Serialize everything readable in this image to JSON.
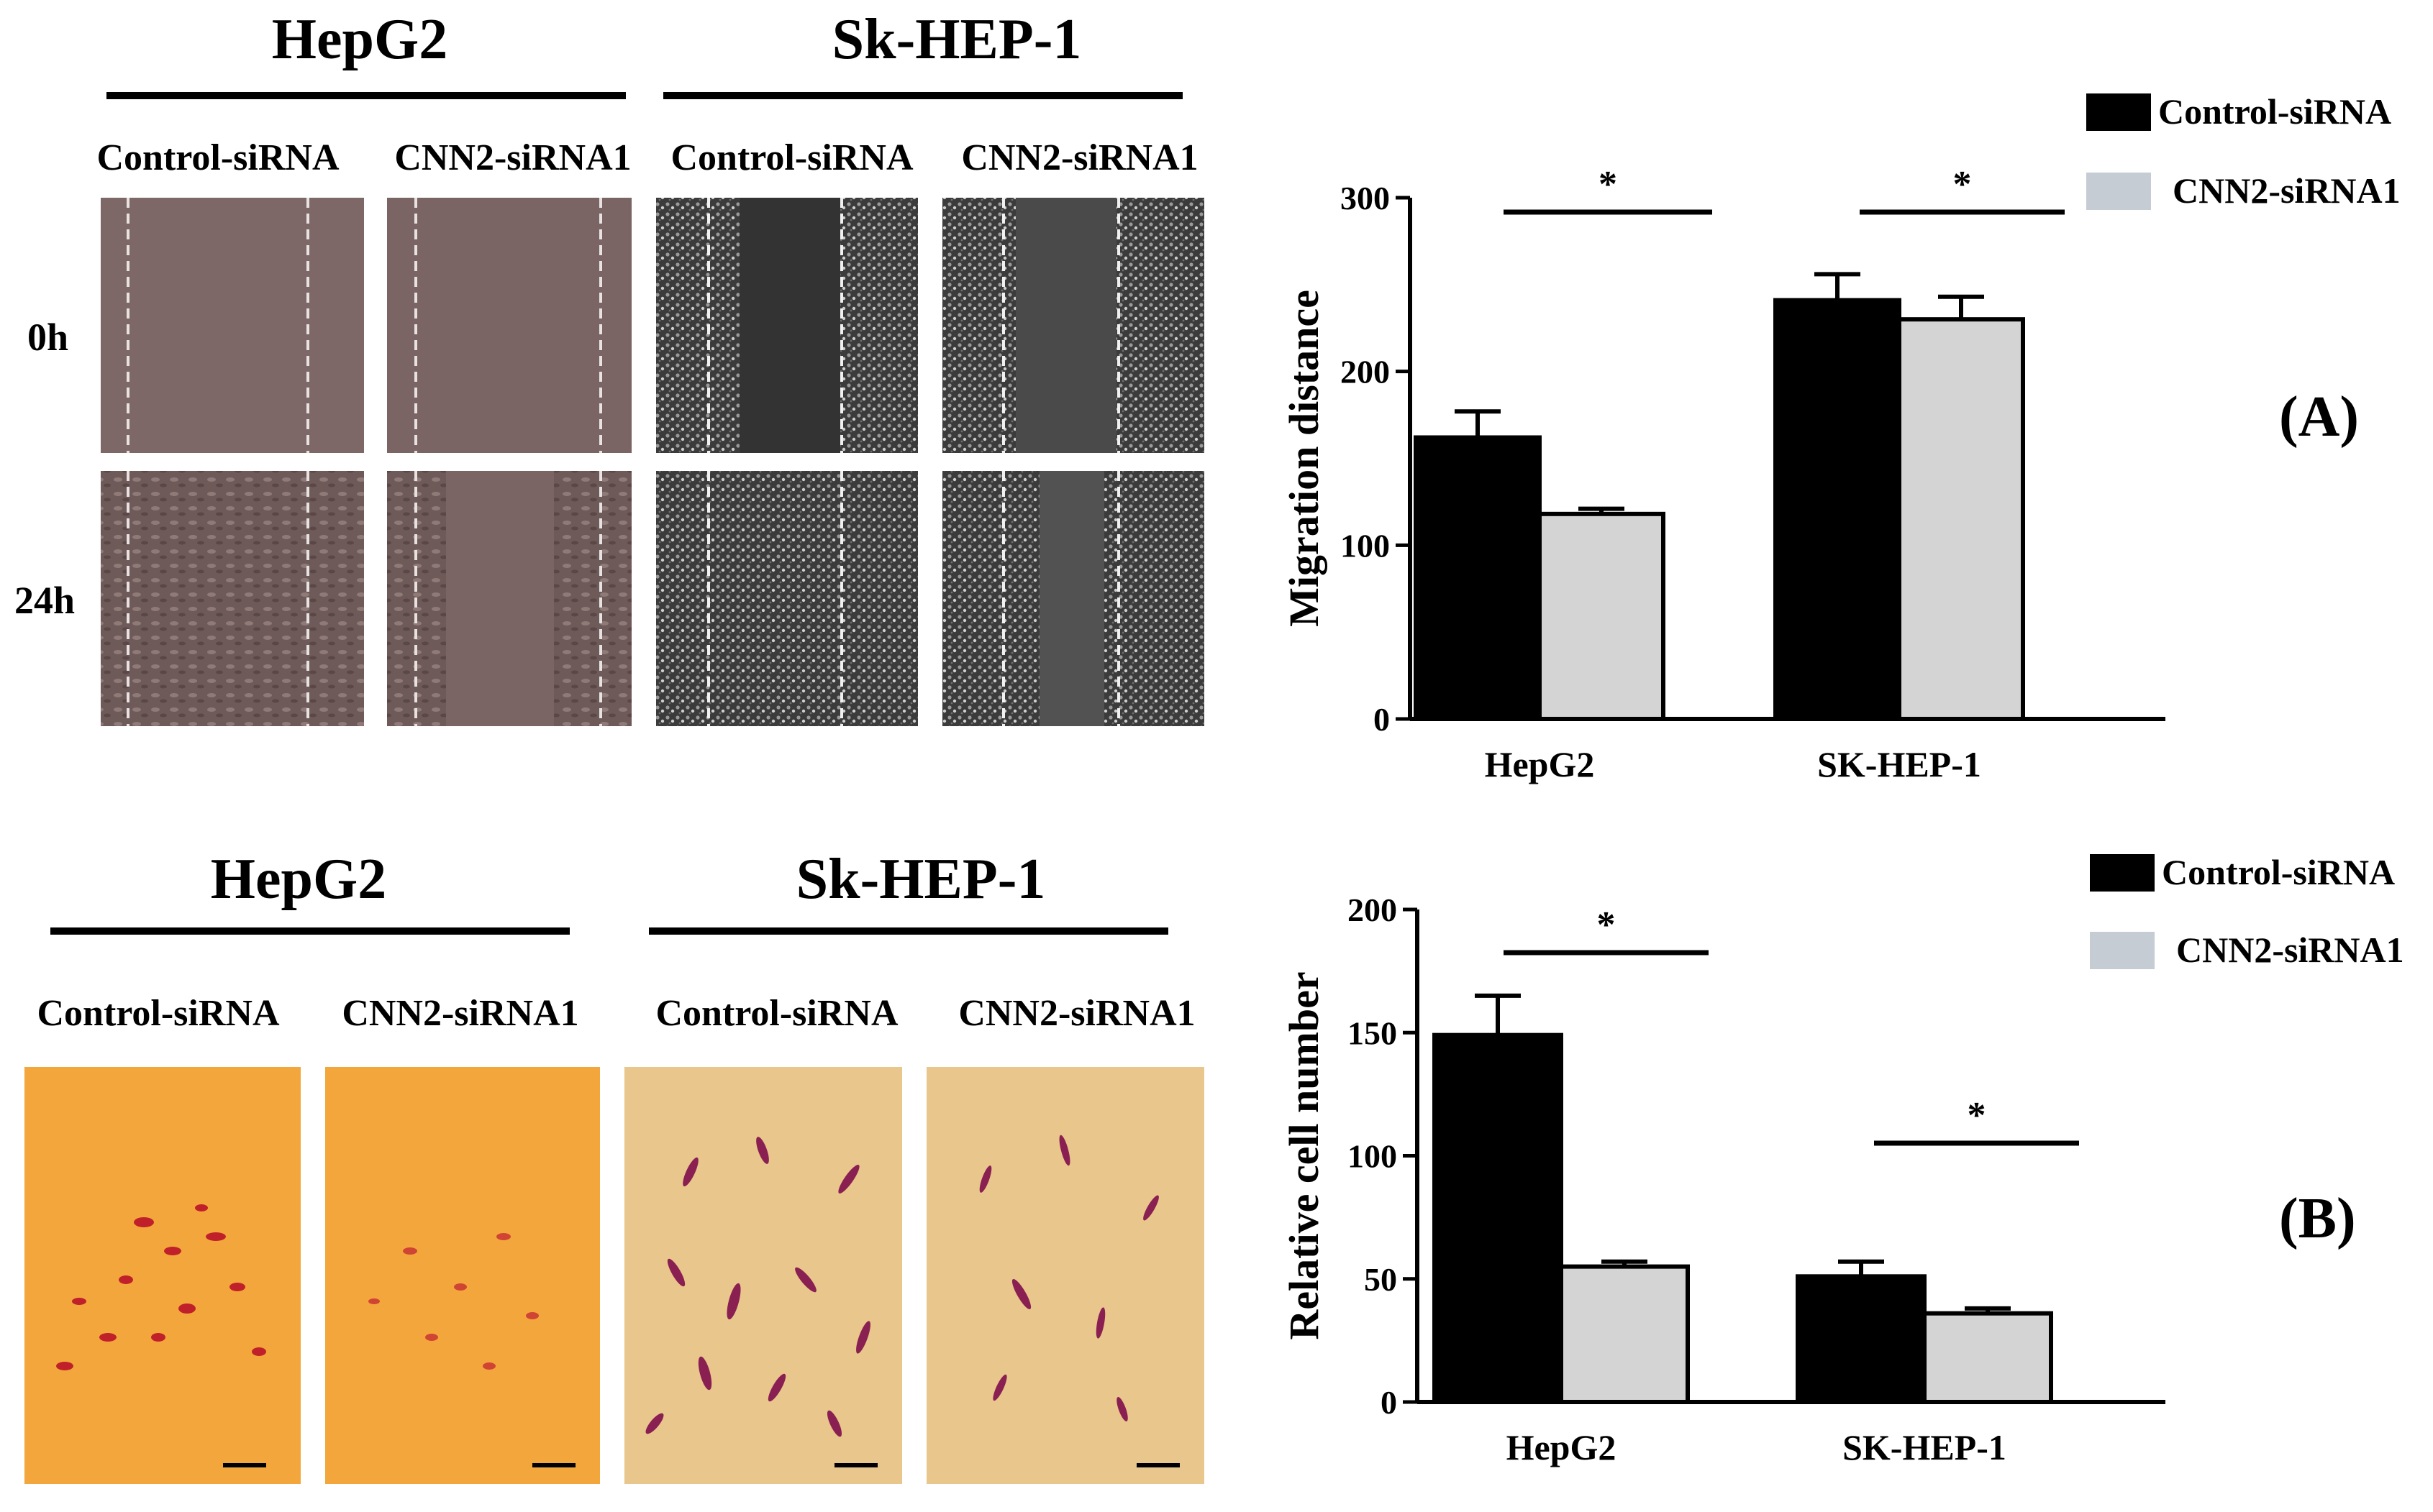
{
  "wound_healing": {
    "headers": [
      "HepG2",
      "Sk-HEP-1"
    ],
    "conditions": [
      "Control-siRNA",
      "CNN2-siRNA1",
      "Control-siRNA",
      "CNN2-siRNA1"
    ],
    "timepoints": [
      "0h",
      "24h"
    ]
  },
  "transwell": {
    "headers": [
      "HepG2",
      "Sk-HEP-1"
    ],
    "conditions": [
      "Control-siRNA",
      "CNN2-siRNA1",
      "Control-siRNA",
      "CNN2-siRNA1"
    ]
  },
  "panel_labels": [
    "(A)",
    "(B)"
  ],
  "colors": {
    "control": "#000000",
    "cnn2": "#d4d4d4",
    "legend_cnn2": "#c5ccd3",
    "wound_hepg2": "#7c6766",
    "wound_sk": "#3a3a3a",
    "transwell_hepg2": "#f0a436",
    "transwell_sk": "#e6c48c",
    "cells_hepg2": "#c0202a",
    "cells_sk": "#8a1f52"
  },
  "chart_data": [
    {
      "type": "bar",
      "categories": [
        "HepG2",
        "SK-HEP-1"
      ],
      "series": [
        {
          "name": "Control-siRNA",
          "values": [
            162,
            241
          ],
          "errors": [
            15,
            15
          ]
        },
        {
          "name": "CNN2-siRNA1",
          "values": [
            118,
            230
          ],
          "errors": [
            3,
            13
          ]
        }
      ],
      "ylabel": "Migration distance",
      "yticks": [
        0,
        100,
        200,
        300
      ],
      "ylim": [
        0,
        300
      ],
      "significance": [
        "*",
        "*"
      ],
      "legend": "top-right"
    },
    {
      "type": "bar",
      "categories": [
        "HepG2",
        "SK-HEP-1"
      ],
      "series": [
        {
          "name": "Control-siRNA",
          "values": [
            149,
            51
          ],
          "errors": [
            16,
            6
          ]
        },
        {
          "name": "CNN2-siRNA1",
          "values": [
            55,
            36
          ],
          "errors": [
            2,
            2
          ]
        }
      ],
      "ylabel": "Relative cell number",
      "yticks": [
        0,
        50,
        100,
        150,
        200
      ],
      "ylim": [
        0,
        200
      ],
      "significance": [
        "*",
        "*"
      ],
      "legend": "top-right"
    }
  ]
}
